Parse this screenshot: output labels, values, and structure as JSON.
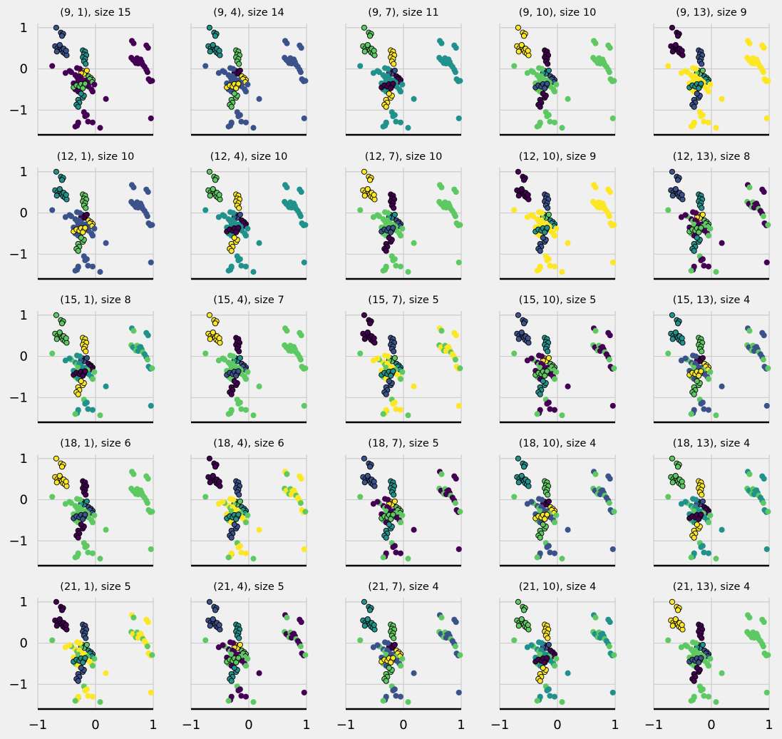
{
  "chart_data": {
    "type": "scatter",
    "layout": {
      "rows": 5,
      "cols": 5
    },
    "xlim": [
      -1.0,
      1.0
    ],
    "ylim": [
      -1.6,
      1.1
    ],
    "xticks": [
      -1,
      0,
      1
    ],
    "yticks": [
      -1,
      0,
      1
    ],
    "xtick_labels": [
      "−1",
      "0",
      "1"
    ],
    "ytick_labels": [
      "−1",
      "0",
      "1"
    ],
    "grid": true,
    "colormap": [
      "#440154",
      "#3b528b",
      "#21918c",
      "#5ec962",
      "#fde725"
    ],
    "panels": [
      {
        "title": "(9, 1), size 15",
        "row": 0,
        "col": 0,
        "clusters": 6
      },
      {
        "title": "(9, 4), size 14",
        "row": 0,
        "col": 1,
        "clusters": 6
      },
      {
        "title": "(9, 7), size 11",
        "row": 0,
        "col": 2,
        "clusters": 6
      },
      {
        "title": "(9, 10), size 10",
        "row": 0,
        "col": 3,
        "clusters": 6
      },
      {
        "title": "(9, 13), size 9",
        "row": 0,
        "col": 4,
        "clusters": 6
      },
      {
        "title": "(12, 1), size 10",
        "row": 1,
        "col": 0,
        "clusters": 6
      },
      {
        "title": "(12, 4), size 10",
        "row": 1,
        "col": 1,
        "clusters": 6
      },
      {
        "title": "(12, 7), size 10",
        "row": 1,
        "col": 2,
        "clusters": 6
      },
      {
        "title": "(12, 10), size 9",
        "row": 1,
        "col": 3,
        "clusters": 6
      },
      {
        "title": "(12, 13), size 8",
        "row": 1,
        "col": 4,
        "clusters": 5
      },
      {
        "title": "(15, 1), size 8",
        "row": 2,
        "col": 0,
        "clusters": 5
      },
      {
        "title": "(15, 4), size 7",
        "row": 2,
        "col": 1,
        "clusters": 5
      },
      {
        "title": "(15, 7), size 5",
        "row": 2,
        "col": 2,
        "clusters": 5
      },
      {
        "title": "(15, 10), size 5",
        "row": 2,
        "col": 3,
        "clusters": 5
      },
      {
        "title": "(15, 13), size 4",
        "row": 2,
        "col": 4,
        "clusters": 5
      },
      {
        "title": "(18, 1), size 6",
        "row": 3,
        "col": 0,
        "clusters": 5
      },
      {
        "title": "(18, 4), size 6",
        "row": 3,
        "col": 1,
        "clusters": 5
      },
      {
        "title": "(18, 7), size 5",
        "row": 3,
        "col": 2,
        "clusters": 5
      },
      {
        "title": "(18, 10), size 4",
        "row": 3,
        "col": 3,
        "clusters": 5
      },
      {
        "title": "(18, 13), size 4",
        "row": 3,
        "col": 4,
        "clusters": 5
      },
      {
        "title": "(21, 1), size 5",
        "row": 4,
        "col": 0,
        "clusters": 5
      },
      {
        "title": "(21, 4), size 5",
        "row": 4,
        "col": 1,
        "clusters": 5
      },
      {
        "title": "(21, 7), size 4",
        "row": 4,
        "col": 2,
        "clusters": 5
      },
      {
        "title": "(21, 10), size 4",
        "row": 4,
        "col": 3,
        "clusters": 5
      },
      {
        "title": "(21, 13), size 4",
        "row": 4,
        "col": 4,
        "clusters": 5
      }
    ],
    "points": [
      {
        "x": -0.68,
        "y": 1.0,
        "c": 1
      },
      {
        "x": -0.6,
        "y": 0.88,
        "c": 1
      },
      {
        "x": -0.57,
        "y": 0.83,
        "c": 1
      },
      {
        "x": -0.56,
        "y": 0.85,
        "c": 1
      },
      {
        "x": -0.58,
        "y": 0.8,
        "c": 1
      },
      {
        "x": -0.7,
        "y": 0.55,
        "c": 1
      },
      {
        "x": -0.66,
        "y": 0.5,
        "c": 1
      },
      {
        "x": -0.63,
        "y": 0.47,
        "c": 1
      },
      {
        "x": -0.6,
        "y": 0.52,
        "c": 1
      },
      {
        "x": -0.58,
        "y": 0.45,
        "c": 1
      },
      {
        "x": -0.56,
        "y": 0.4,
        "c": 1
      },
      {
        "x": -0.53,
        "y": 0.37,
        "c": 1
      },
      {
        "x": -0.5,
        "y": 0.33,
        "c": 1
      },
      {
        "x": -0.67,
        "y": 0.42,
        "c": 1
      },
      {
        "x": -0.62,
        "y": 0.58,
        "c": 1
      },
      {
        "x": -0.55,
        "y": 0.49,
        "c": 1
      },
      {
        "x": -0.51,
        "y": 0.44,
        "c": 1
      },
      {
        "x": 0.63,
        "y": 0.68,
        "c": 0
      },
      {
        "x": 0.66,
        "y": 0.62,
        "c": 0
      },
      {
        "x": 0.88,
        "y": 0.57,
        "c": 0
      },
      {
        "x": 0.91,
        "y": 0.51,
        "c": 0
      },
      {
        "x": 0.62,
        "y": 0.27,
        "c": 0
      },
      {
        "x": 0.65,
        "y": 0.22,
        "c": 0
      },
      {
        "x": 0.68,
        "y": 0.18,
        "c": 0
      },
      {
        "x": 0.72,
        "y": 0.26,
        "c": 0
      },
      {
        "x": 0.75,
        "y": 0.2,
        "c": 0
      },
      {
        "x": 0.78,
        "y": 0.23,
        "c": 0
      },
      {
        "x": 0.7,
        "y": 0.14,
        "c": 0
      },
      {
        "x": 0.74,
        "y": 0.13,
        "c": 0
      },
      {
        "x": 0.8,
        "y": 0.17,
        "c": 0
      },
      {
        "x": 0.82,
        "y": 0.1,
        "c": 0
      },
      {
        "x": 0.85,
        "y": 0.05,
        "c": 0
      },
      {
        "x": 0.88,
        "y": -0.02,
        "c": 0
      },
      {
        "x": 0.9,
        "y": -0.08,
        "c": 0
      },
      {
        "x": 0.92,
        "y": -0.25,
        "c": 0
      },
      {
        "x": 0.95,
        "y": -0.3,
        "c": 0
      },
      {
        "x": 0.98,
        "y": -0.29,
        "c": 0
      },
      {
        "x": 0.96,
        "y": -1.2,
        "c": 0
      },
      {
        "x": -0.22,
        "y": 0.45,
        "c": 2
      },
      {
        "x": -0.18,
        "y": 0.42,
        "c": 2
      },
      {
        "x": -0.2,
        "y": 0.35,
        "c": 2
      },
      {
        "x": -0.16,
        "y": 0.33,
        "c": 2
      },
      {
        "x": -0.22,
        "y": 0.28,
        "c": 2
      },
      {
        "x": -0.18,
        "y": 0.24,
        "c": 2
      },
      {
        "x": -0.2,
        "y": 0.18,
        "c": 2
      },
      {
        "x": -0.17,
        "y": 0.12,
        "c": 2
      },
      {
        "x": -0.22,
        "y": -0.05,
        "c": 4
      },
      {
        "x": -0.18,
        "y": -0.08,
        "c": 4
      },
      {
        "x": -0.2,
        "y": -0.12,
        "c": 4
      },
      {
        "x": -0.25,
        "y": -0.1,
        "c": 4
      },
      {
        "x": -0.15,
        "y": -0.04,
        "c": 4
      },
      {
        "x": -0.12,
        "y": -0.18,
        "c": 3
      },
      {
        "x": -0.08,
        "y": -0.22,
        "c": 3
      },
      {
        "x": -0.05,
        "y": -0.27,
        "c": 3
      },
      {
        "x": -0.1,
        "y": -0.25,
        "c": 3
      },
      {
        "x": -0.06,
        "y": -0.32,
        "c": 3
      },
      {
        "x": -0.35,
        "y": -0.15,
        "c": 0
      },
      {
        "x": -0.32,
        "y": -0.2,
        "c": 0
      },
      {
        "x": -0.28,
        "y": -0.18,
        "c": 0
      },
      {
        "x": -0.25,
        "y": -0.23,
        "c": 0
      },
      {
        "x": -0.3,
        "y": -0.28,
        "c": 0
      },
      {
        "x": -0.22,
        "y": -0.3,
        "c": 0
      },
      {
        "x": -0.18,
        "y": -0.28,
        "c": 0
      },
      {
        "x": -0.14,
        "y": -0.33,
        "c": 0
      },
      {
        "x": -0.38,
        "y": -0.35,
        "c": 0
      },
      {
        "x": -0.33,
        "y": -0.4,
        "c": 0
      },
      {
        "x": -0.42,
        "y": -0.08,
        "c": 0
      },
      {
        "x": -0.45,
        "y": -0.05,
        "c": 0
      },
      {
        "x": -0.52,
        "y": -0.1,
        "c": 0
      },
      {
        "x": -0.35,
        "y": -0.5,
        "c": 0
      },
      {
        "x": -0.3,
        "y": -0.55,
        "c": 0
      },
      {
        "x": -0.07,
        "y": -0.5,
        "c": 0
      },
      {
        "x": -0.05,
        "y": -0.55,
        "c": 0
      },
      {
        "x": -0.27,
        "y": 0.0,
        "c": 0
      },
      {
        "x": -0.32,
        "y": 0.02,
        "c": 0
      },
      {
        "x": -0.75,
        "y": 0.07,
        "c": 0
      },
      {
        "x": 0.18,
        "y": -0.73,
        "c": 0
      },
      {
        "x": -0.12,
        "y": -0.43,
        "c": 0
      },
      {
        "x": -0.02,
        "y": -0.38,
        "c": 0
      },
      {
        "x": -0.38,
        "y": -0.45,
        "c": 3
      },
      {
        "x": -0.33,
        "y": -0.4,
        "c": 3
      },
      {
        "x": -0.28,
        "y": -0.43,
        "c": 3
      },
      {
        "x": -0.25,
        "y": -0.37,
        "c": 3
      },
      {
        "x": -0.2,
        "y": -0.42,
        "c": 3
      },
      {
        "x": -0.18,
        "y": -0.36,
        "c": 3
      },
      {
        "x": -0.22,
        "y": -0.47,
        "c": 3
      },
      {
        "x": -0.3,
        "y": -0.75,
        "c": 2
      },
      {
        "x": -0.28,
        "y": -0.82,
        "c": 2
      },
      {
        "x": -0.33,
        "y": -0.87,
        "c": 2
      },
      {
        "x": -0.3,
        "y": -0.92,
        "c": 2
      },
      {
        "x": -0.22,
        "y": -0.7,
        "c": 2
      },
      {
        "x": -0.2,
        "y": -0.65,
        "c": 2
      },
      {
        "x": -0.25,
        "y": -0.6,
        "c": 2
      },
      {
        "x": -0.2,
        "y": -1.05,
        "c": 0
      },
      {
        "x": -0.15,
        "y": -1.12,
        "c": 0
      },
      {
        "x": -0.18,
        "y": -1.15,
        "c": 0
      },
      {
        "x": -0.3,
        "y": -1.32,
        "c": 0
      },
      {
        "x": -0.32,
        "y": -1.38,
        "c": 0
      },
      {
        "x": -0.3,
        "y": -1.3,
        "c": 0
      },
      {
        "x": -0.35,
        "y": -1.4,
        "c": 0
      },
      {
        "x": -0.13,
        "y": -1.28,
        "c": 0
      },
      {
        "x": -0.05,
        "y": -1.3,
        "c": 0
      },
      {
        "x": 0.08,
        "y": -1.43,
        "c": 0
      }
    ]
  }
}
